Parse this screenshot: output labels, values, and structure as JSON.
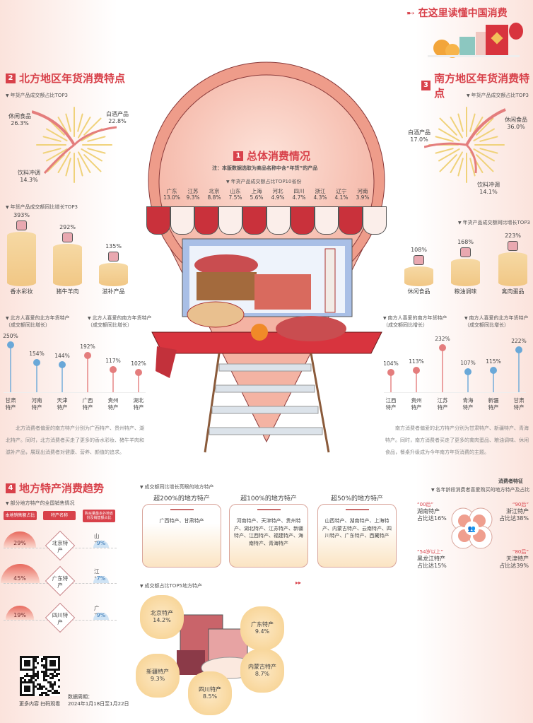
{
  "header": {
    "title": "在这里读懂中国消费"
  },
  "overall": {
    "num": "1",
    "title": "总体消费情况",
    "note": "注：本版数据选取为商品名称中含“年货”的产品",
    "subtitle": "年货产品成交额占比TOP10省份",
    "provinces": [
      {
        "name": "广东",
        "value": "13.0%"
      },
      {
        "name": "江苏",
        "value": "9.3%"
      },
      {
        "name": "北京",
        "value": "8.8%"
      },
      {
        "name": "山东",
        "value": "7.5%"
      },
      {
        "name": "上海",
        "value": "5.6%"
      },
      {
        "name": "河北",
        "value": "4.9%"
      },
      {
        "name": "四川",
        "value": "4.7%"
      },
      {
        "name": "浙江",
        "value": "4.3%"
      },
      {
        "name": "辽宁",
        "value": "4.1%"
      },
      {
        "name": "河南",
        "value": "3.9%"
      }
    ]
  },
  "north": {
    "num": "2",
    "title": "北方地区年货消费特点",
    "share_title": "年货产品成交额占比TOP3",
    "share": [
      {
        "name": "休闲食品",
        "value": "26.3%"
      },
      {
        "name": "白酒产品",
        "value": "22.8%"
      },
      {
        "name": "饮料冲调",
        "value": "14.3%"
      }
    ],
    "growth_title": "年货产品成交额同比增长TOP3",
    "para": "北方消费者偏爱的南方特产分别为广西特产、贵州特产、湖北特产。同时，北方消费者买走了更多的香水彩妆、猪牛羊肉和滋补产品，展现出消费者对健康、营养、颜值的追求。",
    "lolli_title_a": "北方人喜爱的北方年货特产",
    "lolli_title_b": "北方人喜爱的南方年货特产",
    "lolli_note": "（成交额同比增长）"
  },
  "south": {
    "num": "3",
    "title": "南方地区年货消费特点",
    "share_title": "年货产品成交额占比TOP3",
    "share": [
      {
        "name": "休闲食品",
        "value": "36.0%"
      },
      {
        "name": "白酒产品",
        "value": "17.0%"
      },
      {
        "name": "饮料冲调",
        "value": "14.1%"
      }
    ],
    "growth_title": "年货产品成交额同比增长TOP3",
    "para": "南方消费者偏爱的北方特产分别为甘肃特产、新疆特产、青海特产。同时，南方消费者买走了更多的禽肉蛋品、粮油调味、休闲食品，餐桌升级成为今年南方年货消费的主题。",
    "lolli_title_a": "南方人喜爱的南方年货特产",
    "lolli_title_b": "南方人喜爱的北方年货特产",
    "lolli_note": "（成交额同比增长）"
  },
  "chart_data": [
    {
      "type": "bar",
      "title": "年货产品成交额同比增长TOP3",
      "region": "北方",
      "categories": [
        "香水彩妆",
        "猪牛羊肉",
        "滋补产品"
      ],
      "values": [
        393,
        292,
        135
      ],
      "unit": "%"
    },
    {
      "type": "bar",
      "title": "年货产品成交额同比增长TOP3",
      "region": "南方",
      "categories": [
        "休闲食品",
        "粮油调味",
        "禽肉蛋品"
      ],
      "values": [
        108,
        168,
        223
      ],
      "unit": "%"
    },
    {
      "type": "lollipop",
      "title": "北方人喜爱的年货特产（成交额同比增长）",
      "categories": [
        "甘肃特产",
        "河南特产",
        "天津特产",
        "广西特产",
        "贵州特产",
        "湖北特产"
      ],
      "values": [
        250,
        154,
        144,
        192,
        117,
        102
      ],
      "colors": [
        "#6aa8d8",
        "#6aa8d8",
        "#6aa8d8",
        "#e47d7d",
        "#e47d7d",
        "#e47d7d"
      ],
      "unit": "%"
    },
    {
      "type": "lollipop",
      "title": "南方人喜爱的年货特产（成交额同比增长）",
      "categories": [
        "江西特产",
        "贵州特产",
        "江苏特产",
        "青海特产",
        "新疆特产",
        "甘肃特产"
      ],
      "values": [
        104,
        113,
        232,
        107,
        115,
        222
      ],
      "colors": [
        "#e47d7d",
        "#e47d7d",
        "#e47d7d",
        "#6aa8d8",
        "#6aa8d8",
        "#6aa8d8"
      ],
      "unit": "%"
    }
  ],
  "local": {
    "num": "4",
    "title": "地方特产消费趋势",
    "table_title": "部分地方特产的全国销售情况",
    "headers": [
      "本地销售额占比",
      "特产名称",
      "购买量最多外地省份及销售额占比"
    ],
    "rows": [
      {
        "local": "29%",
        "local_value": 29,
        "name": "北京特产",
        "other": "山东",
        "other_pct": "9%"
      },
      {
        "local": "45%",
        "local_value": 45,
        "name": "广东特产",
        "other": "江苏",
        "other_pct": "7%"
      },
      {
        "local": "19%",
        "local_value": 19,
        "name": "四川特产",
        "other": "广东",
        "other_pct": "9%"
      }
    ],
    "growth_title": "成交额同比增长亮眼的地方特产",
    "tiers": [
      {
        "head": "超200%的地方特产",
        "body": "广西特产、甘肃特产"
      },
      {
        "head": "超100%的地方特产",
        "body": "河南特产、天津特产、贵州特产、湖北特产、江苏特产、新疆特产、江西特产、福建特产、海南特产、青海特产"
      },
      {
        "head": "超50%的地方特产",
        "body": "山西特产、湖南特产、上海特产、内蒙古特产、云南特产、四川特产、广东特产、西藏特产"
      }
    ],
    "top5_title": "成交额占比TOP5地方特产",
    "top5": [
      {
        "name": "北京特产",
        "value": "14.2%"
      },
      {
        "name": "广东特产",
        "value": "9.4%"
      },
      {
        "name": "新疆特产",
        "value": "9.3%"
      },
      {
        "name": "内蒙古特产",
        "value": "8.7%"
      },
      {
        "name": "四川特产",
        "value": "8.5%"
      }
    ],
    "consumer_title": "消费者特征",
    "consumer_sub": "各年龄段消费者喜爱购买的地方特产及占比",
    "ages": [
      {
        "age": "“00后”",
        "name": "湖南特产",
        "pct": "占比达16%"
      },
      {
        "age": "“90后”",
        "name": "浙江特产",
        "pct": "占比达38%"
      },
      {
        "age": "“54岁以上”",
        "name": "黑龙江特产",
        "pct": "占比达15%"
      },
      {
        "age": "“80后”",
        "name": "天津特产",
        "pct": "占比达39%"
      }
    ]
  },
  "footer": {
    "qr_caption": "更多内容 扫码观看",
    "period_label": "数据周期：",
    "period": "2024年1月18日至1月22日"
  },
  "colors": {
    "accent": "#d8414a",
    "blue": "#6aa8d8",
    "pink": "#e47d7d",
    "gold": "#f3cf8a"
  }
}
